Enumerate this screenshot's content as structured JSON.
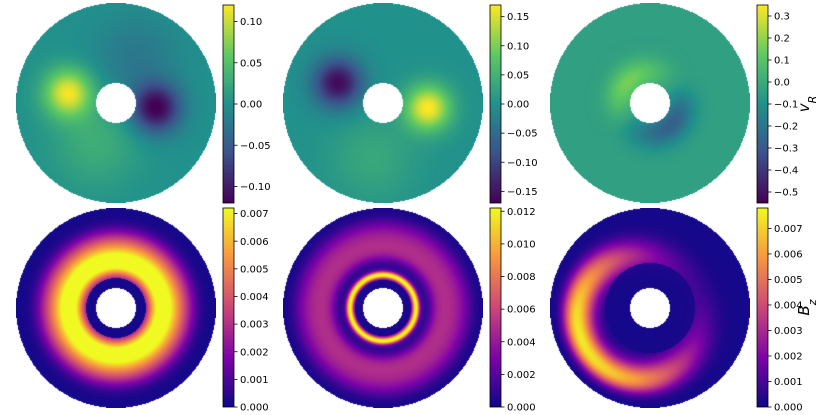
{
  "chart_data": {
    "type": "heatmap",
    "layout": "2 rows x 3 columns of annular (polar) colormap panels",
    "panels": [
      {
        "row": "top",
        "column": 1,
        "colormap": "viridis",
        "field": "v_R",
        "clim": [
          -0.12,
          0.12
        ],
        "pattern": "yellow positive lobe on the left of the hole, dark negative lobe on the right",
        "colorbar_ticks": [
          "0.10",
          "0.05",
          "0.00",
          "−0.05",
          "−0.10"
        ],
        "colorbar_tick_values": [
          0.1,
          0.05,
          0.0,
          -0.05,
          -0.1
        ],
        "colorbar_label": ""
      },
      {
        "row": "top",
        "column": 2,
        "colormap": "viridis",
        "field": "v_R",
        "clim": [
          -0.17,
          0.17
        ],
        "pattern": "dark negative lobe upper-left, yellow positive crescent right of the hole",
        "colorbar_ticks": [
          "0.15",
          "0.10",
          "0.05",
          "0.00",
          "−0.05",
          "−0.10",
          "−0.15"
        ],
        "colorbar_tick_values": [
          0.15,
          0.1,
          0.05,
          0.0,
          -0.05,
          -0.1,
          -0.15
        ],
        "colorbar_label": ""
      },
      {
        "row": "top",
        "column": 3,
        "colormap": "viridis",
        "field": "v_R",
        "clim": [
          -0.55,
          0.35
        ],
        "pattern": "mostly ~0; bright crescent upper-left and dark crescent lower-right hugging the inner edge",
        "colorbar_ticks": [
          "0.3",
          "0.2",
          "0.1",
          "0.0",
          "−0.1",
          "−0.2",
          "−0.3",
          "−0.4",
          "−0.5"
        ],
        "colorbar_tick_values": [
          0.3,
          0.2,
          0.1,
          0.0,
          -0.1,
          -0.2,
          -0.3,
          -0.4,
          -0.5
        ],
        "colorbar_label": "v_R"
      },
      {
        "row": "bottom",
        "column": 1,
        "colormap": "plasma",
        "field": "B_z",
        "clim": [
          0,
          0.0072
        ],
        "pattern": "bright ring peaking near r≈0.45, dark inner gap and dark outer rim",
        "colorbar_ticks": [
          "0.007",
          "0.006",
          "0.005",
          "0.004",
          "0.003",
          "0.002",
          "0.001",
          "0.000"
        ],
        "colorbar_tick_values": [
          0.007,
          0.006,
          0.005,
          0.004,
          0.003,
          0.002,
          0.001,
          0.0
        ],
        "colorbar_label": ""
      },
      {
        "row": "bottom",
        "column": 2,
        "colormap": "plasma",
        "field": "B_z",
        "clim": [
          0,
          0.0122
        ],
        "pattern": "thin bright ring at the inner edge, dim purple broad disk, dark gap around hole",
        "colorbar_ticks": [
          "0.012",
          "0.010",
          "0.008",
          "0.006",
          "0.004",
          "0.002",
          "0.000"
        ],
        "colorbar_tick_values": [
          0.012,
          0.01,
          0.008,
          0.006,
          0.004,
          0.002,
          0.0
        ],
        "colorbar_label": ""
      },
      {
        "row": "bottom",
        "column": 3,
        "colormap": "plasma",
        "field": "B_z",
        "clim": [
          0,
          0.0078
        ],
        "pattern": "lopsided bright crescent on the lower-left, large dark region around the hole",
        "colorbar_ticks": [
          "0.007",
          "0.006",
          "0.005",
          "0.004",
          "0.003",
          "0.002",
          "0.001",
          "0.000"
        ],
        "colorbar_tick_values": [
          0.007,
          0.006,
          0.005,
          0.004,
          0.003,
          0.002,
          0.001,
          0.0
        ],
        "colorbar_label": "B_z"
      }
    ]
  },
  "colors": {
    "viridis": [
      "#440154",
      "#3b528b",
      "#21918c",
      "#5ec962",
      "#fde725"
    ],
    "plasma": [
      "#0d0887",
      "#7e03a8",
      "#cc4778",
      "#f89540",
      "#f0f921"
    ]
  }
}
